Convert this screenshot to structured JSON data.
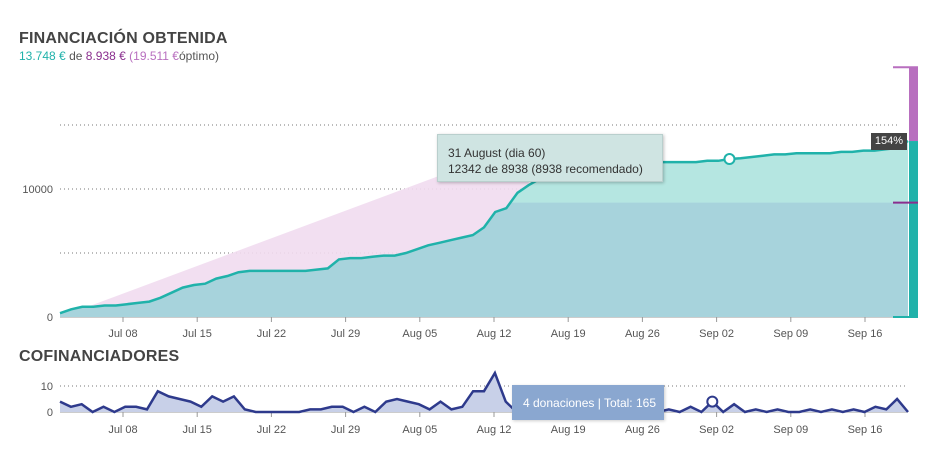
{
  "header": {
    "title": "FINANCIACIÓN OBTENIDA",
    "obtained": "13.748 €",
    "of": "de",
    "goal": "8.938 €",
    "optimum": "(19.511 €",
    "optimum_suffix": "óptimo)"
  },
  "colors": {
    "obtained": "#20b2aa",
    "goal": "#8a2e8e",
    "optimum": "#b86fbf",
    "cofund": "#2e3a8c"
  },
  "chart_data": [
    {
      "type": "area",
      "title": "FINANCIACIÓN OBTENIDA",
      "x_ticks": [
        "Jul 08",
        "Jul 15",
        "Jul 22",
        "Jul 29",
        "Aug 05",
        "Aug 12",
        "Aug 19",
        "Aug 26",
        "Sep 02",
        "Sep 09",
        "Sep 16"
      ],
      "y_ticks": [
        "0",
        "10000"
      ],
      "ylim": [
        0,
        20000
      ],
      "grid": true,
      "series": [
        {
          "values": [
            300,
            600,
            800,
            800,
            900,
            900,
            1000,
            1100,
            1200,
            1500,
            1900,
            2300,
            2500,
            2600,
            3000,
            3200,
            3500,
            3600,
            3600,
            3600,
            3600,
            3600,
            3600,
            3700,
            3800,
            4500,
            4600,
            4600,
            4700,
            4800,
            4800,
            5000,
            5300,
            5600,
            5800,
            6000,
            6200,
            6400,
            7000,
            8200,
            8500,
            9700,
            10300,
            10800,
            11100,
            11300,
            11500,
            11600,
            11700,
            11800,
            11900,
            12000,
            12000,
            12000,
            12100,
            12100,
            12100,
            12100,
            12200,
            12200,
            12342,
            12400,
            12500,
            12600,
            12700,
            12700,
            12800,
            12800,
            12800,
            12800,
            12900,
            12900,
            13000,
            13000,
            13100,
            13200,
            13748
          ]
        }
      ],
      "reference_goal": 8938,
      "reference_optimum": 19511,
      "percent_label": "154%",
      "tooltip": {
        "line1": "31 August (dia 60)",
        "line2": "12342 de 8938 (8938 recomendado)"
      }
    },
    {
      "type": "line",
      "title": "COFINANCIADORES",
      "x_ticks": [
        "Jul 08",
        "Jul 15",
        "Jul 22",
        "Jul 29",
        "Aug 05",
        "Aug 12",
        "Aug 19",
        "Aug 26",
        "Sep 02",
        "Sep 09",
        "Sep 16"
      ],
      "y_ticks": [
        "0",
        "10"
      ],
      "ylim": [
        0,
        16
      ],
      "series": [
        {
          "values": [
            4,
            2,
            3,
            0,
            2,
            0,
            2,
            2,
            1,
            8,
            6,
            5,
            4,
            2,
            6,
            4,
            6,
            1,
            0,
            0,
            0,
            0,
            0,
            1,
            1,
            2,
            2,
            0,
            2,
            0,
            4,
            5,
            4,
            3,
            1,
            4,
            1,
            2,
            8,
            8,
            15,
            4,
            0,
            0,
            0,
            0,
            0,
            1,
            0,
            0,
            0,
            0,
            0,
            0,
            0,
            0,
            1,
            0,
            2,
            0,
            4,
            0,
            3,
            0,
            1,
            0,
            1,
            0,
            0,
            1,
            0,
            1,
            0,
            1,
            0,
            2,
            1,
            5,
            0
          ]
        }
      ],
      "tooltip": "4 donaciones | Total: 165"
    }
  ],
  "cofund_title": "COFINANCIADORES"
}
